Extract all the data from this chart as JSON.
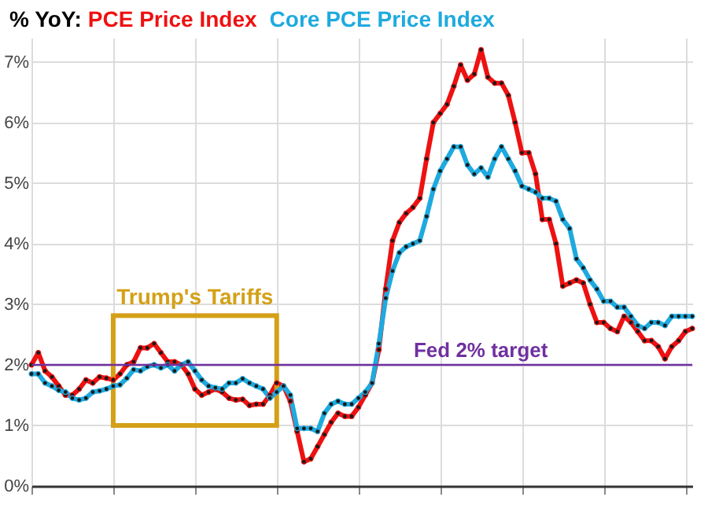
{
  "chart_data": {
    "type": "line",
    "title": "% YoY:",
    "marker": "circle",
    "grid": true,
    "tick_labels": "y",
    "categories": [
      null,
      null,
      null,
      null,
      null,
      null,
      null,
      null,
      null,
      null,
      null,
      null,
      null,
      null,
      null,
      null,
      null,
      null,
      null,
      null,
      null,
      null,
      null,
      null,
      null,
      null,
      null,
      null,
      null,
      null,
      null,
      null,
      null,
      null,
      null,
      null,
      null,
      null,
      null,
      null,
      null,
      null,
      null,
      null,
      null,
      null,
      null,
      null,
      null,
      null,
      null,
      null,
      null,
      null,
      null,
      null,
      null,
      null,
      null,
      null,
      null,
      null,
      null,
      null,
      null,
      null,
      null,
      null,
      null,
      null,
      null,
      null,
      null,
      null,
      null,
      null,
      null,
      null,
      null,
      null,
      null,
      null,
      null,
      null,
      null,
      null,
      null,
      null,
      null,
      null,
      null,
      null,
      null,
      null,
      null,
      null,
      null,
      null
    ],
    "ylim": [
      0,
      7.4
    ],
    "yticks": [
      {
        "value": 0,
        "label": "0%"
      },
      {
        "value": 1,
        "label": "1%"
      },
      {
        "value": 2,
        "label": "2%"
      },
      {
        "value": 3,
        "label": "3%"
      },
      {
        "value": 4,
        "label": "4%"
      },
      {
        "value": 5,
        "label": "5%"
      },
      {
        "value": 6,
        "label": "6%"
      },
      {
        "value": 7,
        "label": "7%"
      }
    ],
    "series": [
      {
        "name": "PCE Price Index",
        "color": "#ee1111",
        "values": [
          2.0,
          2.2,
          1.9,
          1.8,
          1.65,
          1.5,
          1.5,
          1.6,
          1.75,
          1.7,
          1.8,
          1.78,
          1.75,
          1.85,
          2.0,
          2.05,
          2.28,
          2.28,
          2.35,
          2.2,
          2.05,
          2.05,
          2.0,
          1.85,
          1.6,
          1.5,
          1.55,
          1.6,
          1.55,
          1.45,
          1.42,
          1.43,
          1.33,
          1.35,
          1.35,
          1.5,
          1.7,
          1.65,
          1.4,
          0.9,
          0.4,
          0.45,
          0.65,
          0.85,
          1.05,
          1.2,
          1.15,
          1.15,
          1.3,
          1.5,
          1.7,
          2.25,
          3.25,
          4.05,
          4.35,
          4.5,
          4.6,
          4.75,
          5.4,
          6.0,
          6.15,
          6.3,
          6.6,
          6.95,
          6.7,
          6.8,
          7.2,
          6.75,
          6.65,
          6.65,
          6.45,
          6.0,
          5.5,
          5.5,
          5.15,
          4.4,
          4.4,
          4.0,
          3.3,
          3.35,
          3.4,
          3.35,
          3.0,
          2.7,
          2.7,
          2.6,
          2.55,
          2.8,
          2.7,
          2.55,
          2.4,
          2.4,
          2.3,
          2.1,
          2.3,
          2.4,
          2.55,
          2.6
        ]
      },
      {
        "name": "Core PCE Price Index",
        "color": "#1eaadf",
        "values": [
          1.85,
          1.85,
          1.7,
          1.65,
          1.58,
          1.55,
          1.45,
          1.42,
          1.45,
          1.55,
          1.57,
          1.6,
          1.65,
          1.67,
          1.78,
          1.92,
          1.9,
          1.97,
          2.0,
          1.95,
          2.0,
          1.9,
          2.0,
          2.05,
          1.9,
          1.75,
          1.65,
          1.62,
          1.6,
          1.7,
          1.7,
          1.77,
          1.7,
          1.65,
          1.6,
          1.45,
          1.55,
          1.65,
          1.5,
          0.95,
          0.95,
          0.95,
          0.9,
          1.2,
          1.35,
          1.4,
          1.35,
          1.35,
          1.45,
          1.55,
          1.7,
          2.35,
          3.1,
          3.55,
          3.85,
          3.95,
          4.0,
          4.05,
          4.45,
          4.9,
          5.2,
          5.4,
          5.6,
          5.6,
          5.3,
          5.15,
          5.25,
          5.1,
          5.4,
          5.6,
          5.4,
          5.2,
          4.95,
          4.9,
          4.85,
          4.75,
          4.75,
          4.7,
          4.4,
          4.25,
          3.75,
          3.6,
          3.4,
          3.25,
          3.05,
          3.05,
          2.95,
          2.95,
          2.8,
          2.65,
          2.6,
          2.7,
          2.7,
          2.65,
          2.8,
          2.8,
          2.8,
          2.8
        ]
      }
    ],
    "ref_lines": [
      {
        "axis": "y",
        "value": 2,
        "label": "Fed 2% target",
        "color": "#7030a0"
      }
    ],
    "annotations": [
      "Trump's Tariffs"
    ]
  }
}
